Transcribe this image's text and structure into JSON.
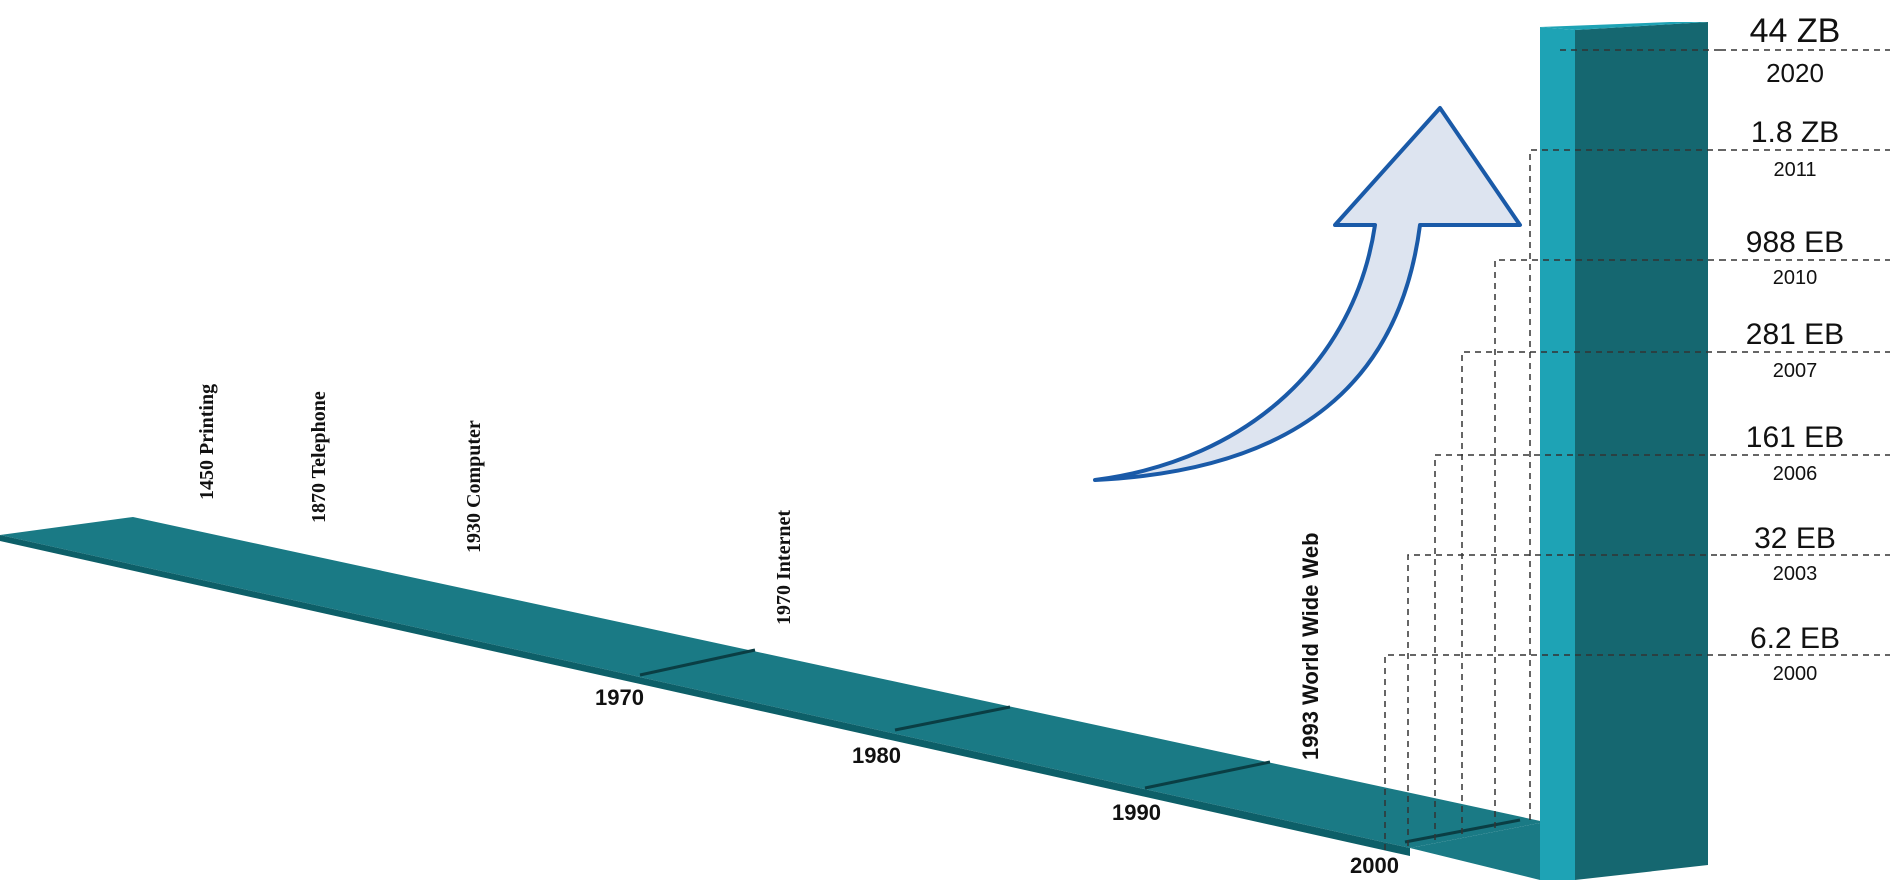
{
  "colors": {
    "band_top": "#1a7a85",
    "band_front": "#0d5f68",
    "pillar_face": "#1ea3b5",
    "pillar_side": "#156770",
    "arrow_fill": "#dde4f0",
    "arrow_stroke": "#1a5aa8",
    "dashed": "#333333",
    "text": "#111111"
  },
  "icons": {
    "growth_arrow": "curved-up-arrow-icon"
  },
  "events": [
    {
      "label": "1450  Printing"
    },
    {
      "label": "1870 Telephone"
    },
    {
      "label": "1930 Computer"
    },
    {
      "label": "1970 Internet"
    },
    {
      "label": "1993 World Wide Web"
    }
  ],
  "decades": [
    "1970",
    "1980",
    "1990",
    "2000"
  ],
  "data_volume": [
    {
      "value": "44 ZB",
      "year": "2020"
    },
    {
      "value": "1.8 ZB",
      "year": "2011"
    },
    {
      "value": "988 EB",
      "year": "2010"
    },
    {
      "value": "281 EB",
      "year": "2007"
    },
    {
      "value": "161 EB",
      "year": "2006"
    },
    {
      "value": "32 EB",
      "year": "2003"
    },
    {
      "value": "6.2 EB",
      "year": "2000"
    }
  ]
}
